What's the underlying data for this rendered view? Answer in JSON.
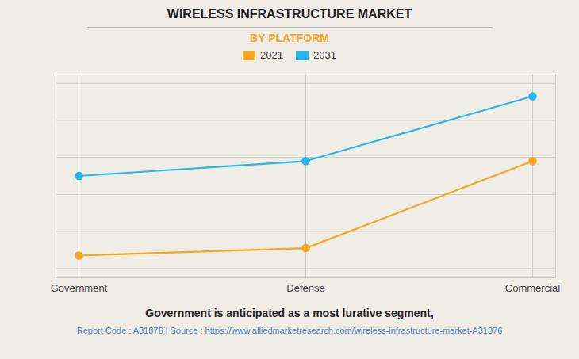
{
  "chart_data": {
    "type": "line",
    "title": "WIRELESS INFRASTRUCTURE MARKET",
    "subtitle": "BY PLATFORM",
    "categories": [
      "Government",
      "Defense",
      "Commercial"
    ],
    "series": [
      {
        "name": "2021",
        "color": "#F5A623",
        "values": [
          0.07,
          0.11,
          0.58
        ]
      },
      {
        "name": "2031",
        "color": "#29B6E8",
        "values": [
          0.5,
          0.58,
          0.93
        ]
      }
    ],
    "ylim": [
      -0.05,
      1.05
    ],
    "yticks": [
      0,
      0.2,
      0.4,
      0.6,
      0.8,
      1.0
    ],
    "grid": true,
    "tick_labels": "x",
    "legend": "upper center",
    "marker": "circle",
    "line_style": "solid",
    "annotations": [
      "Government is anticipated as a most lurative segment,",
      "Report Code : A31876  |  Source : https://www.alliedmarketresearch.com/wireless-infrastructure-market-A31876"
    ]
  }
}
